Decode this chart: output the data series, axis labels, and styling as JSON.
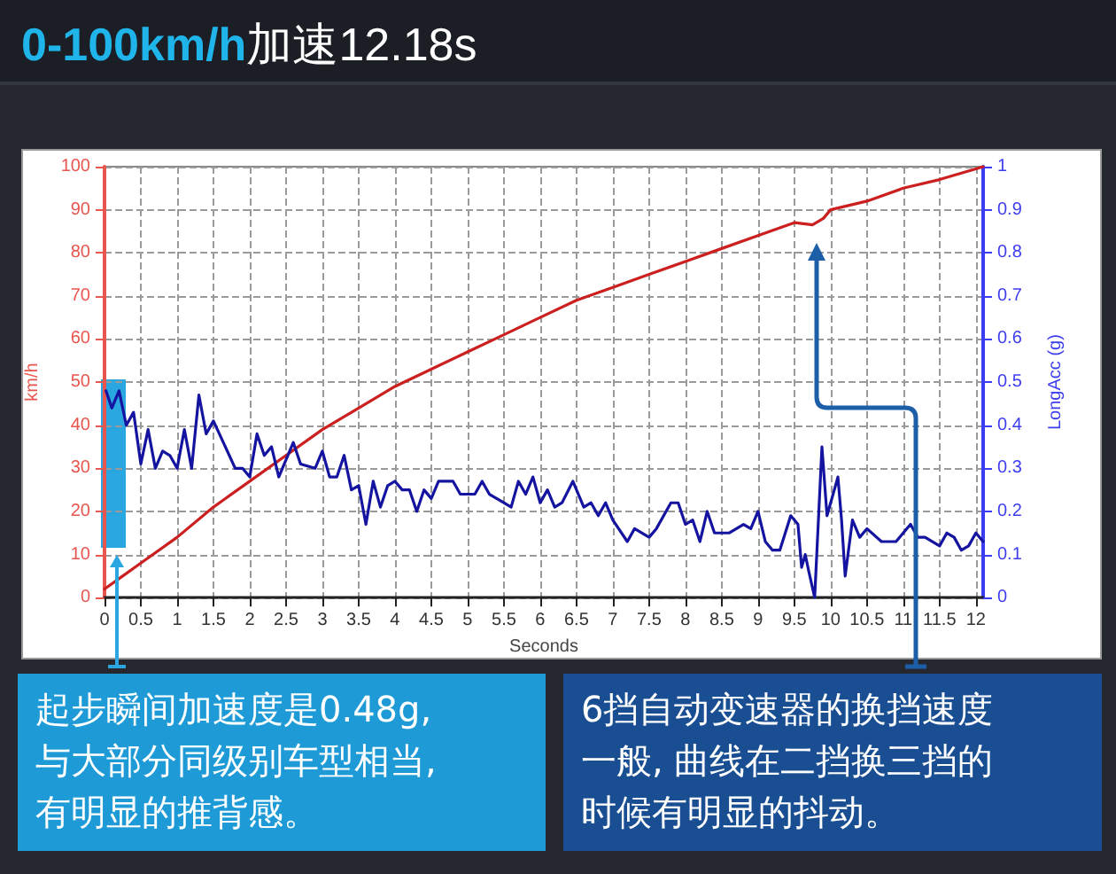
{
  "chart_data": {
    "type": "line",
    "title": "0-100km/h加速12.18s",
    "xlabel": "Seconds",
    "ylabel": "km/h",
    "y2label": "LongAcc (g)",
    "xlim": [
      0,
      12.1
    ],
    "xticks": [
      0,
      0.5,
      1,
      1.5,
      2,
      2.5,
      3,
      3.5,
      4,
      4.5,
      5,
      5.5,
      6,
      6.5,
      7,
      7.5,
      8,
      8.5,
      9,
      9.5,
      10,
      10.5,
      11,
      11.5,
      12
    ],
    "ylim": [
      0,
      100
    ],
    "yticks": [
      0,
      10,
      20,
      30,
      40,
      50,
      60,
      70,
      80,
      90,
      100
    ],
    "y2lim": [
      0,
      1
    ],
    "y2ticks": [
      0,
      0.1,
      0.2,
      0.3,
      0.4,
      0.5,
      0.6,
      0.7,
      0.8,
      0.9,
      1
    ],
    "grid": true,
    "marker": "none",
    "line_style": "solid",
    "series": [
      {
        "color": "#cc1f1f",
        "x": [
          0,
          0.25,
          0.5,
          1,
          1.5,
          2,
          2.5,
          3,
          3.5,
          4,
          4.5,
          5,
          5.5,
          6,
          6.5,
          7,
          7.5,
          8,
          8.5,
          9,
          9.5,
          9.75,
          9.9,
          10,
          10.5,
          11,
          11.5,
          12,
          12.1
        ],
        "values": [
          2,
          5,
          8,
          14,
          21,
          27,
          33,
          39,
          44,
          49,
          53,
          57,
          61,
          65,
          69,
          72,
          75,
          78,
          81,
          84,
          87,
          86.5,
          88,
          90,
          92,
          95,
          97,
          99.5,
          100
        ]
      },
      {
        "color": "#1414a0",
        "axis": "y2",
        "x": [
          0.02,
          0.1,
          0.2,
          0.3,
          0.4,
          0.5,
          0.6,
          0.7,
          0.8,
          0.9,
          1.0,
          1.1,
          1.2,
          1.3,
          1.4,
          1.5,
          1.8,
          1.9,
          2.0,
          2.1,
          2.2,
          2.3,
          2.4,
          2.6,
          2.7,
          2.9,
          3.0,
          3.1,
          3.2,
          3.3,
          3.4,
          3.5,
          3.6,
          3.7,
          3.8,
          3.9,
          4.0,
          4.1,
          4.2,
          4.3,
          4.4,
          4.5,
          4.6,
          4.8,
          4.9,
          5.1,
          5.2,
          5.3,
          5.5,
          5.6,
          5.7,
          5.8,
          5.9,
          6.0,
          6.1,
          6.2,
          6.3,
          6.45,
          6.6,
          6.7,
          6.8,
          6.9,
          7.0,
          7.2,
          7.3,
          7.5,
          7.6,
          7.8,
          7.9,
          8.0,
          8.1,
          8.2,
          8.3,
          8.4,
          8.6,
          8.8,
          8.9,
          9.0,
          9.1,
          9.2,
          9.3,
          9.45,
          9.55,
          9.6,
          9.65,
          9.7,
          9.78,
          9.88,
          9.95,
          10.0,
          10.1,
          10.15,
          10.2,
          10.3,
          10.4,
          10.5,
          10.7,
          10.9,
          11.1,
          11.2,
          11.3,
          11.5,
          11.6,
          11.7,
          11.8,
          11.9,
          12.0,
          12.1
        ],
        "values": [
          0.48,
          0.44,
          0.48,
          0.4,
          0.43,
          0.31,
          0.39,
          0.3,
          0.34,
          0.33,
          0.3,
          0.39,
          0.3,
          0.47,
          0.38,
          0.41,
          0.3,
          0.3,
          0.28,
          0.38,
          0.33,
          0.35,
          0.28,
          0.36,
          0.31,
          0.3,
          0.34,
          0.28,
          0.28,
          0.33,
          0.25,
          0.26,
          0.17,
          0.27,
          0.21,
          0.26,
          0.27,
          0.25,
          0.25,
          0.2,
          0.25,
          0.23,
          0.27,
          0.27,
          0.24,
          0.24,
          0.27,
          0.24,
          0.22,
          0.21,
          0.27,
          0.24,
          0.28,
          0.22,
          0.25,
          0.21,
          0.22,
          0.27,
          0.21,
          0.22,
          0.19,
          0.22,
          0.18,
          0.13,
          0.16,
          0.14,
          0.16,
          0.22,
          0.22,
          0.17,
          0.18,
          0.13,
          0.2,
          0.15,
          0.15,
          0.17,
          0.16,
          0.2,
          0.13,
          0.11,
          0.11,
          0.19,
          0.17,
          0.07,
          0.1,
          0.06,
          0.0,
          0.35,
          0.19,
          0.22,
          0.28,
          0.18,
          0.05,
          0.18,
          0.14,
          0.16,
          0.13,
          0.13,
          0.17,
          0.14,
          0.14,
          0.12,
          0.15,
          0.14,
          0.11,
          0.12,
          0.15,
          0.13
        ]
      }
    ],
    "annotations": [
      "起步瞬间加速度是0.48g,与大部分同级别车型相当,有明显的推背感。",
      "6挡自动变速器的换挡速度一般, 曲线在二挡换三挡的时候有明显的抖动。"
    ]
  }
}
